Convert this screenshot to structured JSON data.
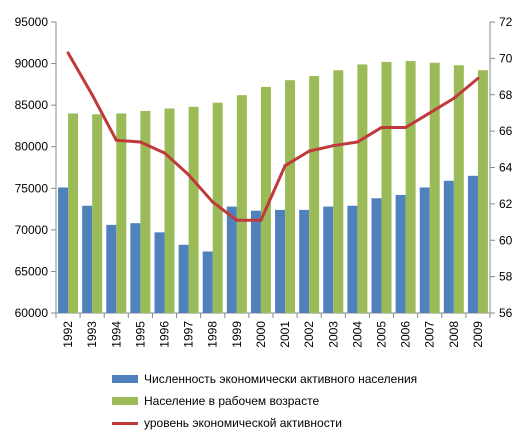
{
  "chart_data": {
    "type": "bar",
    "categories": [
      "1992",
      "1993",
      "1994",
      "1995",
      "1996",
      "1997",
      "1998",
      "1999",
      "2000",
      "2001",
      "2002",
      "2003",
      "2004",
      "2005",
      "2006",
      "2007",
      "2008",
      "2009"
    ],
    "series": [
      {
        "name": "Численность экономически активного  населения",
        "type": "bar",
        "axis": "left",
        "color": "#4f81bd",
        "values": [
          75100,
          72900,
          70600,
          70800,
          69700,
          68200,
          67400,
          72800,
          72300,
          72400,
          72400,
          72800,
          72900,
          73800,
          74200,
          75100,
          75900,
          76500
        ]
      },
      {
        "name": "Население в рабочем возрасте",
        "type": "bar",
        "axis": "left",
        "color": "#9bbb59",
        "values": [
          84000,
          83900,
          84000,
          84300,
          84600,
          84800,
          85300,
          86200,
          87200,
          88000,
          88500,
          89200,
          89900,
          90200,
          90300,
          90100,
          89800,
          89200
        ]
      },
      {
        "name": "уровень экономической активности",
        "type": "line",
        "axis": "right",
        "color": "#c0393b",
        "values": [
          70.3,
          68.0,
          65.5,
          65.4,
          64.8,
          63.6,
          62.1,
          61.1,
          61.1,
          64.1,
          64.9,
          65.2,
          65.4,
          66.2,
          66.2,
          67.0,
          67.8,
          68.9
        ]
      }
    ],
    "left_axis": {
      "ylim": [
        60000,
        95000
      ],
      "ticks": [
        "60000",
        "65000",
        "70000",
        "75000",
        "80000",
        "85000",
        "90000",
        "95000"
      ]
    },
    "right_axis": {
      "ylim": [
        56,
        72
      ],
      "ticks": [
        "56",
        "58",
        "60",
        "62",
        "64",
        "66",
        "68",
        "70",
        "72"
      ]
    },
    "grid": false,
    "legend_position": "bottom"
  }
}
